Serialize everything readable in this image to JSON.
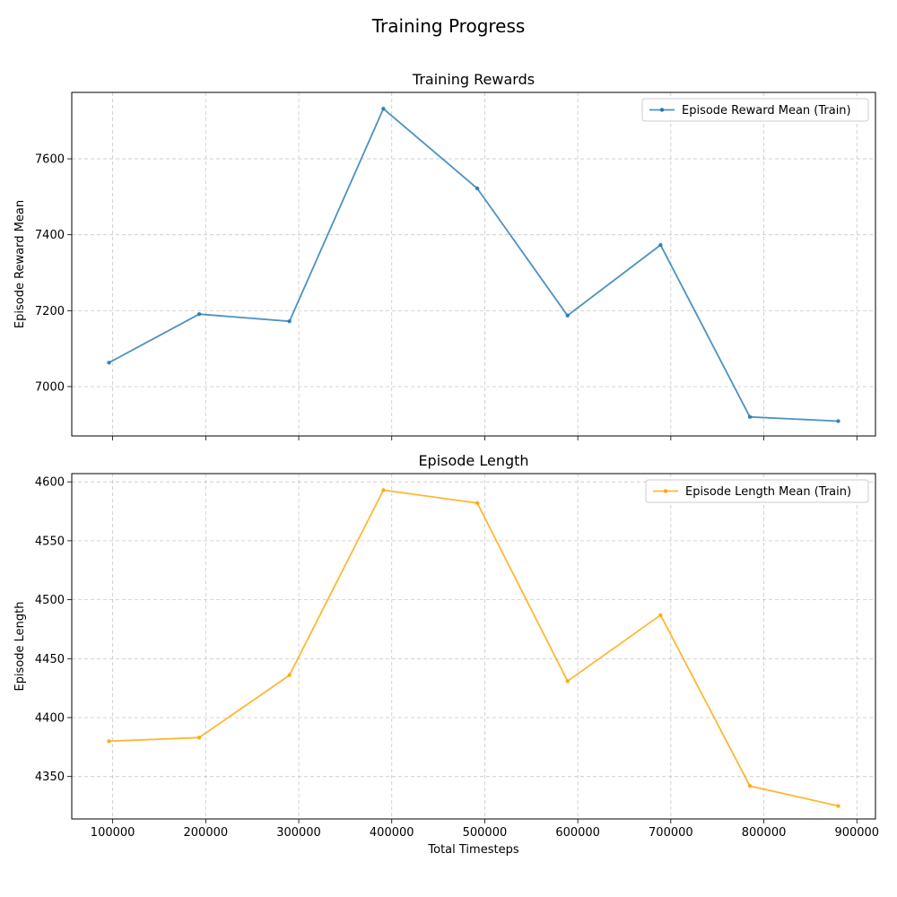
{
  "figure": {
    "suptitle": "Training Progress"
  },
  "chart_data": [
    {
      "type": "line",
      "title": "Training Rewards",
      "xlabel": "",
      "ylabel": "Episode Reward Mean",
      "xlim": [
        56000,
        920000
      ],
      "ylim": [
        6870,
        7775
      ],
      "xticks": [
        100000,
        200000,
        300000,
        400000,
        500000,
        600000,
        700000,
        800000,
        900000
      ],
      "xtick_labels_visible": false,
      "yticks": [
        7000,
        7200,
        7400,
        7600
      ],
      "grid": true,
      "legend_position": "upper-right",
      "series": [
        {
          "name": "Episode Reward Mean (Train)",
          "color": "#1f77b4",
          "x": [
            96000,
            193000,
            290000,
            391000,
            492000,
            589000,
            689000,
            785000,
            880000
          ],
          "y": [
            7063,
            7191,
            7172,
            7732,
            7522,
            7187,
            7373,
            6920,
            6909
          ]
        }
      ]
    },
    {
      "type": "line",
      "title": "Episode Length",
      "xlabel": "Total Timesteps",
      "ylabel": "Episode Length",
      "xlim": [
        56000,
        920000
      ],
      "ylim": [
        4314,
        4607
      ],
      "xticks": [
        100000,
        200000,
        300000,
        400000,
        500000,
        600000,
        700000,
        800000,
        900000
      ],
      "xtick_labels_visible": true,
      "yticks": [
        4350,
        4400,
        4450,
        4500,
        4550,
        4600
      ],
      "grid": true,
      "legend_position": "upper-right",
      "series": [
        {
          "name": "Episode Length Mean (Train)",
          "color": "#ffa500",
          "x": [
            96000,
            193000,
            290000,
            391000,
            492000,
            589000,
            689000,
            785000,
            880000
          ],
          "y": [
            4380,
            4383,
            4436,
            4593,
            4582,
            4431,
            4487,
            4342,
            4325
          ]
        }
      ]
    }
  ]
}
